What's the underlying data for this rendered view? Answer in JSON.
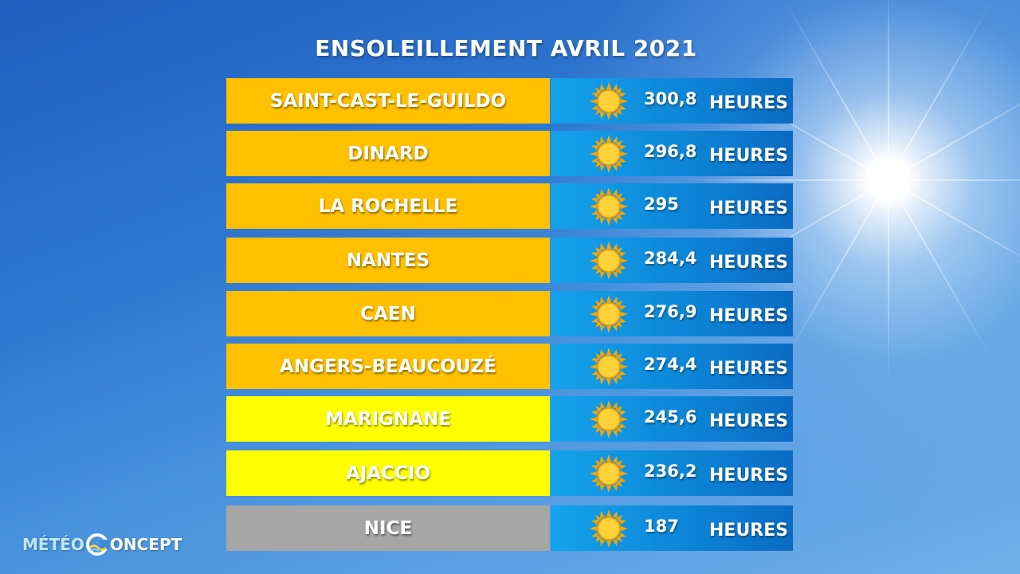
{
  "title": "ENSOLEILLEMENT AVRIL 2021",
  "unit": "HEURES",
  "colors": {
    "orange": "#ffc000",
    "yellow": "#ffff00",
    "grey": "#a6a6a6",
    "value_box": "#0d86d8"
  },
  "icon": "sun-icon",
  "rows": [
    {
      "city": "SAINT-CAST-LE-GUILDO",
      "hours": "300,8",
      "color": "orange"
    },
    {
      "city": "DINARD",
      "hours": "296,8",
      "color": "orange"
    },
    {
      "city": "LA ROCHELLE",
      "hours": "295",
      "color": "orange"
    },
    {
      "city": "NANTES",
      "hours": "284,4",
      "color": "orange"
    },
    {
      "city": "CAEN",
      "hours": "276,9",
      "color": "orange"
    },
    {
      "city": "ANGERS-BEAUCOUZÉ",
      "hours": "274,4",
      "color": "orange"
    },
    {
      "city": "MARIGNANE",
      "hours": "245,6",
      "color": "yellow"
    },
    {
      "city": "AJACCIO",
      "hours": "236,2",
      "color": "yellow"
    },
    {
      "city": "NICE",
      "hours": "187",
      "color": "grey"
    }
  ],
  "logo": {
    "left": "MÉTÉO",
    "right": "ONCEPT"
  }
}
